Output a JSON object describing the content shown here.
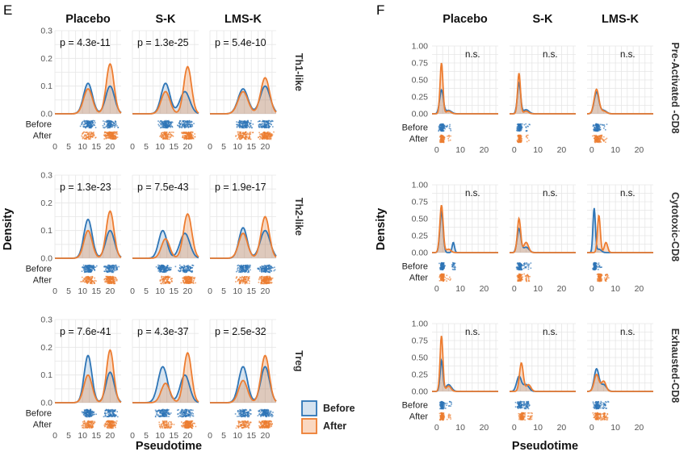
{
  "colors": {
    "before": "#2E75B6",
    "after": "#ED7D31",
    "grid": "#e6e6e6",
    "text": "#222222",
    "tick": "#555555"
  },
  "chart_data": [
    {
      "type": "density",
      "panel_letter": "E",
      "columns": [
        "Placebo",
        "S-K",
        "LMS-K"
      ],
      "rows": [
        "Th1-like",
        "Th2-like",
        "Treg"
      ],
      "ylabel": "Density",
      "xlabel": "Pseudotime",
      "x_ticks": [
        0,
        5,
        10,
        15,
        20
      ],
      "x_tick_labels": [
        "0",
        "5",
        "10",
        "15",
        "20"
      ],
      "xlim": [
        0,
        24
      ],
      "y_ticks": [
        0,
        0.1,
        0.2,
        0.3
      ],
      "y_tick_labels": [
        "0.0",
        "0.1",
        "0.2",
        "0.3"
      ],
      "ylim": [
        0,
        0.3
      ],
      "strip_labels": [
        "Before",
        "After"
      ],
      "legend": {
        "entries": [
          "Before",
          "After"
        ],
        "position": "bottom-right"
      },
      "pvalues": [
        [
          "p = 4.3e-11",
          "p = 1.3e-25",
          "p = 5.4e-10"
        ],
        [
          "p = 1.3e-23",
          "p = 7.5e-43",
          "p = 1.9e-17"
        ],
        [
          "p = 7.6e-41",
          "p = 4.3e-37",
          "p = 2.5e-32"
        ]
      ],
      "peaks": [
        [
          {
            "before": [
              [
                12,
                0.11,
                1.6
              ],
              [
                20,
                0.1,
                1.6
              ]
            ],
            "after": [
              [
                12,
                0.09,
                1.6
              ],
              [
                20,
                0.18,
                1.4
              ]
            ]
          },
          {
            "before": [
              [
                12,
                0.11,
                1.6
              ],
              [
                19,
                0.08,
                1.8
              ]
            ],
            "after": [
              [
                12,
                0.08,
                1.6
              ],
              [
                20,
                0.17,
                1.4
              ]
            ]
          },
          {
            "before": [
              [
                12,
                0.09,
                1.8
              ],
              [
                20,
                0.1,
                1.8
              ]
            ],
            "after": [
              [
                12,
                0.08,
                1.8
              ],
              [
                20,
                0.13,
                1.6
              ]
            ]
          }
        ],
        [
          {
            "before": [
              [
                12,
                0.14,
                1.5
              ],
              [
                20,
                0.1,
                1.6
              ]
            ],
            "after": [
              [
                12,
                0.1,
                1.5
              ],
              [
                20,
                0.17,
                1.4
              ]
            ]
          },
          {
            "before": [
              [
                11,
                0.1,
                1.5
              ],
              [
                19,
                0.09,
                1.8
              ]
            ],
            "after": [
              [
                12,
                0.07,
                1.5
              ],
              [
                20,
                0.16,
                1.5
              ]
            ]
          },
          {
            "before": [
              [
                12,
                0.11,
                1.5
              ],
              [
                20,
                0.1,
                1.8
              ]
            ],
            "after": [
              [
                12,
                0.09,
                1.6
              ],
              [
                20,
                0.15,
                1.5
              ]
            ]
          }
        ],
        [
          {
            "before": [
              [
                12,
                0.17,
                1.4
              ],
              [
                20,
                0.11,
                1.5
              ]
            ],
            "after": [
              [
                12,
                0.1,
                1.5
              ],
              [
                20,
                0.19,
                1.3
              ]
            ]
          },
          {
            "before": [
              [
                11,
                0.13,
                1.7
              ],
              [
                19,
                0.1,
                1.7
              ]
            ],
            "after": [
              [
                12,
                0.07,
                1.6
              ],
              [
                20,
                0.18,
                1.4
              ]
            ]
          },
          {
            "before": [
              [
                12,
                0.13,
                1.6
              ],
              [
                20,
                0.13,
                1.6
              ]
            ],
            "after": [
              [
                12,
                0.08,
                1.6
              ],
              [
                20,
                0.17,
                1.5
              ]
            ]
          }
        ]
      ]
    },
    {
      "type": "density",
      "panel_letter": "F",
      "columns": [
        "Placebo",
        "S-K",
        "LMS-K"
      ],
      "rows": [
        "Pre-Activated -CD8",
        "Cytotoxic-CD8",
        "Exhausted-CD8"
      ],
      "ylabel": "Density",
      "xlabel": "Pseudotime",
      "x_ticks": [
        0,
        10,
        20
      ],
      "x_tick_labels": [
        "0",
        "10",
        "20"
      ],
      "xlim": [
        -2,
        26
      ],
      "y_ticks": [
        0,
        0.25,
        0.5,
        0.75,
        1.0
      ],
      "y_tick_labels": [
        "0.00",
        "0.25",
        "0.50",
        "0.75",
        "1.00"
      ],
      "ylim": [
        0,
        1.0
      ],
      "strip_labels": [
        "Before",
        "After"
      ],
      "pvalues": [
        [
          "n.s.",
          "n.s.",
          "n.s."
        ],
        [
          "n.s.",
          "n.s.",
          "n.s."
        ],
        [
          "n.s.",
          "n.s.",
          "n.s."
        ]
      ],
      "peaks": [
        [
          {
            "before": [
              [
                2,
                0.35,
                0.8
              ],
              [
                5,
                0.05,
                1.2
              ]
            ],
            "after": [
              [
                2,
                0.75,
                0.6
              ],
              [
                5,
                0.04,
                1.0
              ]
            ]
          },
          {
            "before": [
              [
                2,
                0.45,
                0.7
              ],
              [
                5,
                0.06,
                1.2
              ]
            ],
            "after": [
              [
                2,
                0.6,
                0.6
              ],
              [
                5,
                0.04,
                1.0
              ]
            ]
          },
          {
            "before": [
              [
                2,
                0.32,
                1.0
              ],
              [
                5,
                0.05,
                1.2
              ]
            ],
            "after": [
              [
                2,
                0.36,
                1.0
              ],
              [
                5,
                0.04,
                1.2
              ]
            ]
          }
        ],
        [
          {
            "before": [
              [
                2,
                0.6,
                0.7
              ],
              [
                7,
                0.15,
                0.5
              ]
            ],
            "after": [
              [
                2,
                0.7,
                0.7
              ],
              [
                5,
                0.05,
                1.0
              ]
            ]
          },
          {
            "before": [
              [
                2,
                0.35,
                0.8
              ],
              [
                5,
                0.08,
                1.2
              ]
            ],
            "after": [
              [
                2,
                0.5,
                0.7
              ],
              [
                5,
                0.15,
                1.0
              ]
            ]
          },
          {
            "before": [
              [
                1,
                0.65,
                0.5
              ],
              [
                3,
                0.05,
                1.0
              ]
            ],
            "after": [
              [
                3,
                0.55,
                0.6
              ],
              [
                6,
                0.15,
                0.7
              ]
            ]
          }
        ],
        [
          {
            "before": [
              [
                2,
                0.45,
                0.6
              ],
              [
                5,
                0.1,
                1.2
              ]
            ],
            "after": [
              [
                2,
                0.82,
                0.6
              ],
              [
                5,
                0.08,
                1.0
              ]
            ]
          },
          {
            "before": [
              [
                2,
                0.22,
                1.0
              ],
              [
                5,
                0.1,
                1.2
              ]
            ],
            "after": [
              [
                3,
                0.42,
                0.8
              ],
              [
                6,
                0.1,
                1.0
              ]
            ]
          },
          {
            "before": [
              [
                2,
                0.33,
                1.0
              ],
              [
                5,
                0.1,
                1.2
              ]
            ],
            "after": [
              [
                2,
                0.25,
                1.0
              ],
              [
                5,
                0.15,
                1.0
              ]
            ]
          }
        ]
      ]
    }
  ]
}
